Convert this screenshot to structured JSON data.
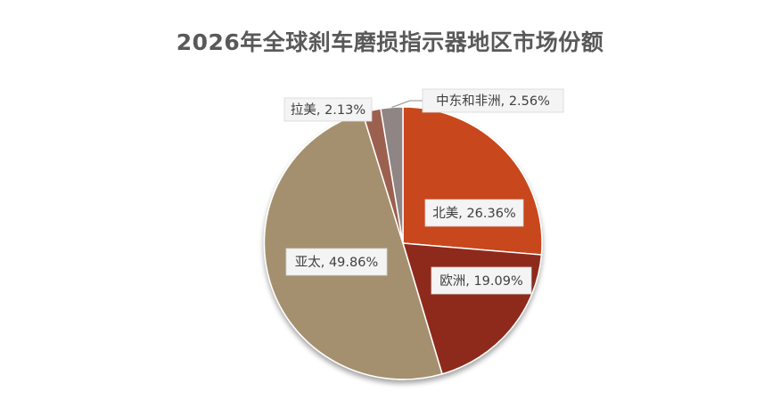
{
  "chart_data": {
    "type": "pie",
    "title": "2026年全球刹车磨损指示器地区市场份额",
    "categories": [
      "北美",
      "欧洲",
      "亚太",
      "拉美",
      "中东和非洲"
    ],
    "values": [
      26.36,
      19.09,
      49.86,
      2.13,
      2.56
    ],
    "labels": [
      "北美, 26.36%",
      "欧洲, 19.09%",
      "亚太, 49.86%",
      "拉美, 2.13%",
      "中东和非洲, 2.56%"
    ],
    "colors": [
      "#C8461C",
      "#8E2A1E",
      "#A4906E",
      "#9C6050",
      "#8F8585"
    ],
    "legend": "none"
  }
}
